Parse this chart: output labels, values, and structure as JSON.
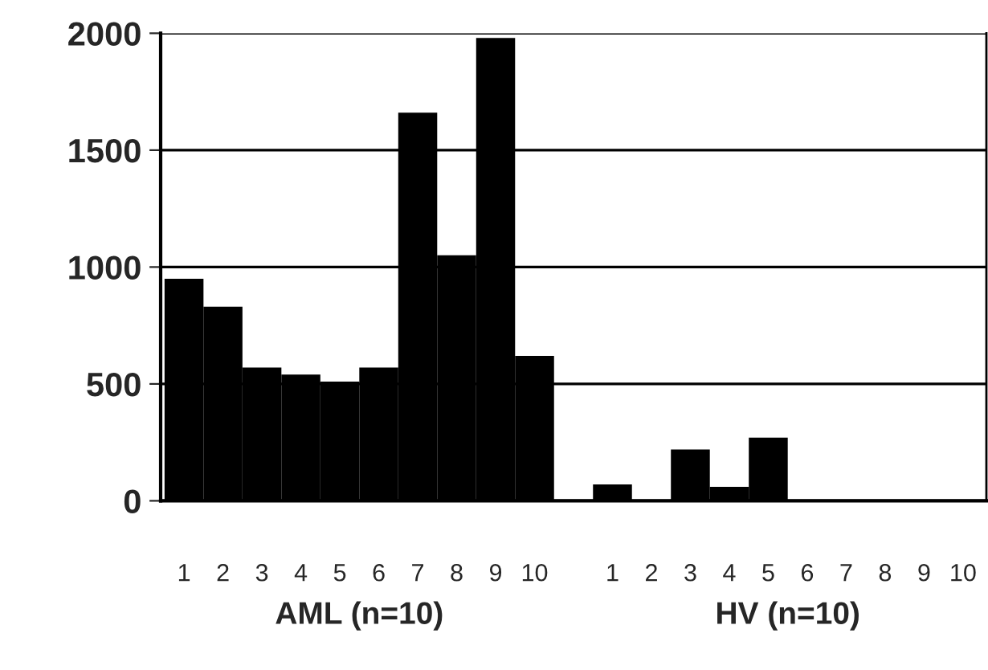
{
  "chart_data": {
    "type": "bar",
    "categories": [
      "1",
      "2",
      "3",
      "4",
      "5",
      "6",
      "7",
      "8",
      "9",
      "10",
      null,
      "1",
      "2",
      "3",
      "4",
      "5",
      "6",
      "7",
      "8",
      "9",
      "10"
    ],
    "values": [
      950,
      830,
      570,
      540,
      510,
      570,
      1660,
      1050,
      1980,
      620,
      null,
      70,
      0,
      220,
      60,
      270,
      0,
      0,
      0,
      0,
      0
    ],
    "color": "#000000",
    "ylim": [
      0,
      2000
    ],
    "yticks": [
      0,
      500,
      1000,
      1500,
      2000
    ],
    "grid": "y",
    "legend": false,
    "annotations": [
      "AML (n=10)",
      "HV (n=10)"
    ]
  }
}
